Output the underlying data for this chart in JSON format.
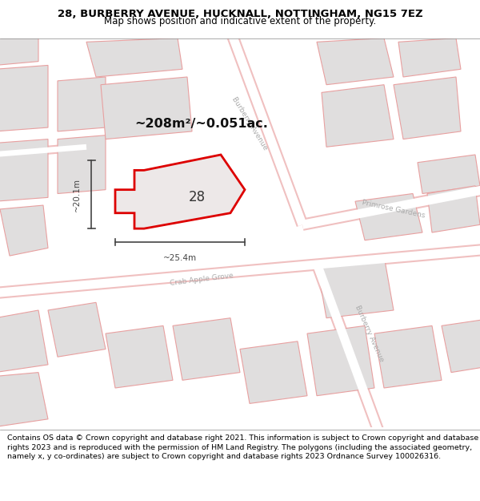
{
  "title_line1": "28, BURBERRY AVENUE, HUCKNALL, NOTTINGHAM, NG15 7EZ",
  "title_line2": "Map shows position and indicative extent of the property.",
  "footer_text": "Contains OS data © Crown copyright and database right 2021. This information is subject to Crown copyright and database rights 2023 and is reproduced with the permission of HM Land Registry. The polygons (including the associated geometry, namely x, y co-ordinates) are subject to Crown copyright and database rights 2023 Ordnance Survey 100026316.",
  "area_label": "~208m²/~0.051ac.",
  "number_label": "28",
  "dim_width": "~25.4m",
  "dim_height": "~20.1m",
  "map_bg": "#f5f0f0",
  "road_fill": "#ffffff",
  "road_border": "#f0c0c0",
  "building_fill": "#e0dede",
  "building_stroke": "#e8a0a0",
  "highlight_fill": "#ede8e8",
  "highlight_stroke": "#dd0000",
  "dim_line_color": "#444444",
  "street_label_color": "#aaaaaa",
  "title_bg": "#ffffff",
  "footer_bg": "#ffffff",
  "title_fontsize": 9.5,
  "subtitle_fontsize": 8.5,
  "footer_fontsize": 6.8
}
